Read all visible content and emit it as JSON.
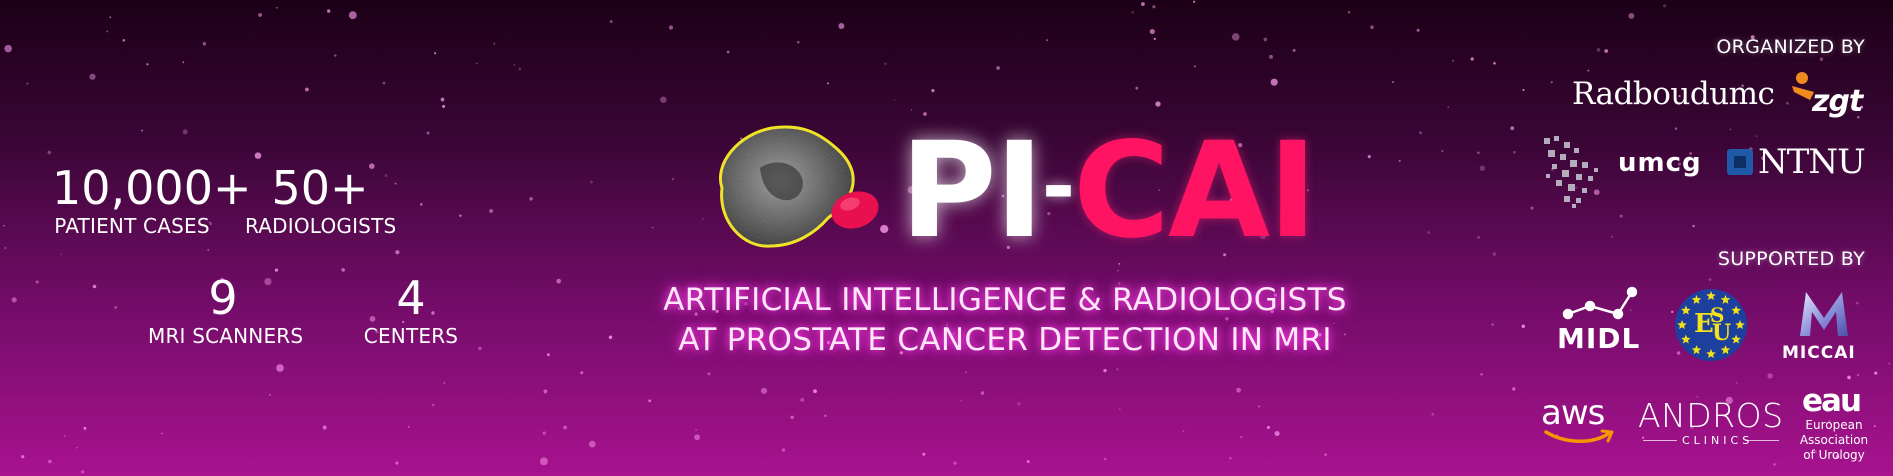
{
  "stats": [
    {
      "value": "10,000+",
      "label": "PATIENT CASES"
    },
    {
      "value": "50+",
      "label": "RADIOLOGISTS"
    },
    {
      "value": "9",
      "label": "MRI SCANNERS"
    },
    {
      "value": "4",
      "label": "CENTERS"
    }
  ],
  "logo": {
    "title_left": "PI",
    "title_dash": "-",
    "title_right": "CAI",
    "colors": {
      "title_left": "#ffffff",
      "title_right": "#ff1464",
      "contour": "#f2e61e",
      "lesion": "#e8104e"
    },
    "image_icon": "prostate-mri-icon"
  },
  "subtitle": {
    "line1": "ARTIFICIAL INTELLIGENCE & RADIOLOGISTS",
    "line2": "AT PROSTATE CANCER DETECTION IN MRI"
  },
  "organized_by": {
    "heading": "ORGANIZED BY",
    "logos": [
      {
        "name": "Radboudumc",
        "icon": "radboudumc-logo"
      },
      {
        "name": "zgt",
        "icon": "zgt-logo"
      },
      {
        "name": "umcg",
        "icon": "umcg-logo"
      },
      {
        "name": "NTNU",
        "icon": "ntnu-logo"
      }
    ]
  },
  "supported_by": {
    "heading": "SUPPORTED BY",
    "logos": [
      {
        "name": "MIDL",
        "icon": "midl-logo"
      },
      {
        "name": "ESUI",
        "icon": "esui-logo"
      },
      {
        "name": "MICCAI",
        "icon": "miccai-logo"
      },
      {
        "name": "aws",
        "icon": "aws-logo"
      },
      {
        "name": "ANDROS",
        "sub": "CLINICS",
        "icon": "andros-clinics-logo"
      },
      {
        "name": "eau",
        "lines": [
          "European",
          "Association",
          "of Urology"
        ],
        "icon": "eau-logo"
      }
    ]
  },
  "colors": {
    "background_top": "#1c0017",
    "background_bottom": "#a8128f",
    "subtitle_glow": "#ff3ce6",
    "zgt_orange": "#f08a1c",
    "ntnu_blue": "#1f5aa8",
    "esui_blue": "#1d3f9e",
    "esui_yellow": "#f2e21a",
    "aws_orange": "#f79400"
  }
}
